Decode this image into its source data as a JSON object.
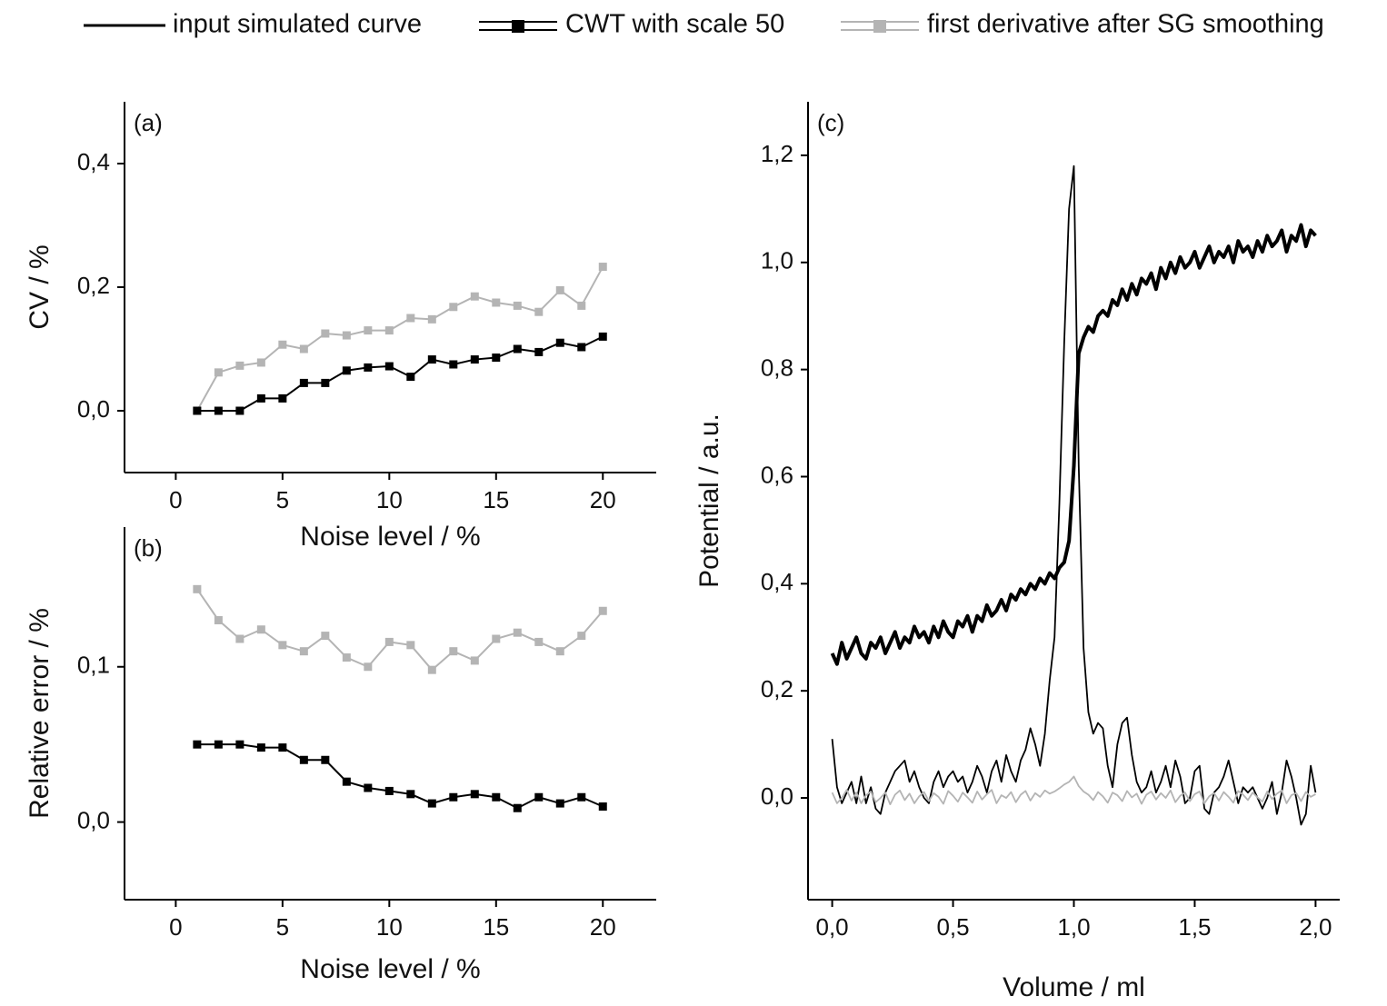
{
  "chart_data": [
    {
      "type": "line",
      "label": "(a)",
      "x_label": "Noise level / %",
      "y_label": "CV / %",
      "x": [
        1,
        2,
        3,
        4,
        5,
        6,
        7,
        8,
        9,
        10,
        11,
        12,
        13,
        14,
        15,
        16,
        17,
        18,
        19,
        20
      ],
      "series": [
        {
          "color": "#b4b4b4",
          "marker": "square",
          "values": [
            0,
            0.062,
            0.073,
            0.078,
            0.107,
            0.1,
            0.125,
            0.122,
            0.13,
            0.13,
            0.15,
            0.148,
            0.168,
            0.185,
            0.175,
            0.17,
            0.16,
            0.195,
            0.17,
            0.233
          ]
        },
        {
          "color": "#000000",
          "marker": "square",
          "values": [
            0,
            0,
            0,
            0.02,
            0.02,
            0.045,
            0.045,
            0.065,
            0.07,
            0.072,
            0.055,
            0.083,
            0.075,
            0.083,
            0.086,
            0.1,
            0.095,
            0.11,
            0.103,
            0.12
          ]
        }
      ],
      "xlim": [
        -2.4,
        22.5
      ],
      "xticks": [
        0,
        5,
        10,
        15,
        20
      ],
      "ylim": [
        -0.1,
        0.5
      ],
      "yticks": [
        {
          "value": 0,
          "label": "0,0"
        },
        {
          "value": 0.2,
          "label": "0,2"
        },
        {
          "value": 0.4,
          "label": "0,4"
        }
      ]
    },
    {
      "type": "line",
      "label": "(b)",
      "x_label": "Noise level / %",
      "y_label": "Relative error / %",
      "x": [
        1,
        2,
        3,
        4,
        5,
        6,
        7,
        8,
        9,
        10,
        11,
        12,
        13,
        14,
        15,
        16,
        17,
        18,
        19,
        20
      ],
      "series": [
        {
          "color": "#b4b4b4",
          "marker": "square",
          "values": [
            0.15,
            0.13,
            0.118,
            0.124,
            0.114,
            0.11,
            0.12,
            0.106,
            0.1,
            0.116,
            0.114,
            0.098,
            0.11,
            0.104,
            0.118,
            0.122,
            0.116,
            0.11,
            0.12,
            0.136
          ]
        },
        {
          "color": "#000000",
          "marker": "square",
          "values": [
            0.05,
            0.05,
            0.05,
            0.048,
            0.048,
            0.04,
            0.04,
            0.026,
            0.022,
            0.02,
            0.018,
            0.012,
            0.016,
            0.018,
            0.016,
            0.009,
            0.016,
            0.012,
            0.016,
            0.01
          ]
        }
      ],
      "xlim": [
        -2.4,
        22.5
      ],
      "xticks": [
        0,
        5,
        10,
        15,
        20
      ],
      "ylim": [
        -0.05,
        0.19
      ],
      "yticks": [
        {
          "value": 0,
          "label": "0,0"
        },
        {
          "value": 0.1,
          "label": "0,1"
        }
      ]
    },
    {
      "type": "line",
      "label": "(c)",
      "x_label": "Volume / ml",
      "y_label": "Potential / a.u.",
      "x": [
        0,
        0.02,
        0.04,
        0.06,
        0.08,
        0.1,
        0.12,
        0.14,
        0.16,
        0.18,
        0.2,
        0.22,
        0.24,
        0.26,
        0.28,
        0.3,
        0.32,
        0.34,
        0.36,
        0.38,
        0.4,
        0.42,
        0.44,
        0.46,
        0.48,
        0.5,
        0.52,
        0.54,
        0.56,
        0.58,
        0.6,
        0.62,
        0.64,
        0.66,
        0.68,
        0.7,
        0.72,
        0.74,
        0.76,
        0.78,
        0.8,
        0.82,
        0.84,
        0.86,
        0.88,
        0.9,
        0.92,
        0.94,
        0.96,
        0.98,
        1,
        1.02,
        1.04,
        1.06,
        1.08,
        1.1,
        1.12,
        1.14,
        1.16,
        1.18,
        1.2,
        1.22,
        1.24,
        1.26,
        1.28,
        1.3,
        1.32,
        1.34,
        1.36,
        1.38,
        1.4,
        1.42,
        1.44,
        1.46,
        1.48,
        1.5,
        1.52,
        1.54,
        1.56,
        1.58,
        1.6,
        1.62,
        1.64,
        1.66,
        1.68,
        1.7,
        1.72,
        1.74,
        1.76,
        1.78,
        1.8,
        1.82,
        1.84,
        1.86,
        1.88,
        1.9,
        1.92,
        1.94,
        1.96,
        1.98,
        2
      ],
      "series": [
        {
          "name": "input simulated curve",
          "color": "#000000",
          "values": [
            0.27,
            0.25,
            0.29,
            0.26,
            0.28,
            0.3,
            0.27,
            0.26,
            0.29,
            0.28,
            0.3,
            0.27,
            0.29,
            0.31,
            0.28,
            0.3,
            0.29,
            0.32,
            0.3,
            0.31,
            0.29,
            0.32,
            0.3,
            0.33,
            0.31,
            0.3,
            0.33,
            0.32,
            0.34,
            0.31,
            0.34,
            0.33,
            0.36,
            0.34,
            0.35,
            0.37,
            0.35,
            0.38,
            0.37,
            0.39,
            0.38,
            0.4,
            0.39,
            0.41,
            0.4,
            0.42,
            0.41,
            0.43,
            0.44,
            0.48,
            0.62,
            0.83,
            0.86,
            0.88,
            0.87,
            0.9,
            0.91,
            0.9,
            0.93,
            0.92,
            0.95,
            0.93,
            0.96,
            0.94,
            0.97,
            0.96,
            0.98,
            0.95,
            0.99,
            0.97,
            1.0,
            0.98,
            1.01,
            0.99,
            1.0,
            1.02,
            0.99,
            1.01,
            1.03,
            1.0,
            1.02,
            1.01,
            1.03,
            1.0,
            1.04,
            1.02,
            1.03,
            1.01,
            1.04,
            1.02,
            1.05,
            1.03,
            1.04,
            1.06,
            1.02,
            1.05,
            1.04,
            1.07,
            1.03,
            1.06,
            1.05
          ]
        },
        {
          "name": "CWT with scale 50",
          "color": "#000000",
          "values": [
            0.11,
            0.02,
            -0.01,
            0.01,
            0.03,
            -0.01,
            0.04,
            -0.01,
            0.02,
            -0.02,
            -0.03,
            0.01,
            0.03,
            0.05,
            0.06,
            0.07,
            0.03,
            0.05,
            0.02,
            0.0,
            -0.01,
            0.03,
            0.05,
            0.02,
            0.04,
            0.05,
            0.03,
            0.04,
            0.01,
            0.03,
            0.06,
            0.04,
            0.01,
            0.05,
            0.07,
            0.03,
            0.08,
            0.05,
            0.03,
            0.07,
            0.09,
            0.13,
            0.1,
            0.06,
            0.12,
            0.22,
            0.3,
            0.55,
            0.85,
            1.1,
            1.18,
            0.62,
            0.28,
            0.16,
            0.12,
            0.14,
            0.13,
            0.06,
            0.02,
            0.1,
            0.14,
            0.15,
            0.08,
            0.03,
            0.01,
            0.02,
            0.05,
            0.01,
            0.03,
            0.06,
            0.02,
            0.07,
            0.04,
            -0.01,
            0.0,
            0.05,
            0.06,
            -0.02,
            -0.03,
            0.01,
            0.02,
            0.04,
            0.07,
            0.03,
            -0.01,
            0.02,
            0.01,
            0.02,
            0.0,
            -0.02,
            0.0,
            0.03,
            -0.03,
            0.01,
            0.07,
            0.04,
            0.0,
            -0.05,
            -0.03,
            0.06,
            0.01
          ]
        },
        {
          "name": "first derivative after SG smoothing",
          "color": "#b4b4b4",
          "values": [
            0.01,
            -0.01,
            0.0,
            0.015,
            -0.005,
            0.01,
            -0.01,
            0.005,
            0.012,
            -0.008,
            0.0,
            0.01,
            -0.012,
            0.006,
            0.014,
            -0.004,
            0.008,
            -0.01,
            0.003,
            0.011,
            -0.006,
            0.009,
            0.002,
            -0.011,
            0.013,
            0.004,
            -0.007,
            0.01,
            0.001,
            -0.009,
            0.012,
            -0.003,
            0.007,
            0.015,
            -0.01,
            0.005,
            0.0,
            0.011,
            -0.008,
            0.006,
            0.013,
            -0.005,
            0.009,
            0.002,
            0.014,
            0.008,
            0.012,
            0.018,
            0.025,
            0.03,
            0.04,
            0.022,
            0.012,
            0.006,
            -0.004,
            0.011,
            0.003,
            -0.009,
            0.01,
            0.005,
            -0.006,
            0.013,
            0.001,
            0.008,
            -0.011,
            0.006,
            0.012,
            -0.003,
            0.009,
            0.0,
            0.014,
            -0.008,
            0.004,
            0.01,
            -0.006,
            0.007,
            0.012,
            -0.01,
            0.003,
            0.009,
            -0.005,
            0.011,
            0.002,
            -0.009,
            0.013,
            0.006,
            -0.004,
            0.01,
            0.001,
            -0.007,
            0.012,
            -0.002,
            0.008,
            0.014,
            -0.01,
            0.005,
            0.009,
            -0.006,
            0.011,
            0.002,
            0.007
          ]
        }
      ],
      "xlim": [
        -0.1,
        2.1
      ],
      "xticks": [
        {
          "value": 0,
          "label": "0,0"
        },
        {
          "value": 0.5,
          "label": "0,5"
        },
        {
          "value": 1,
          "label": "1,0"
        },
        {
          "value": 1.5,
          "label": "1,5"
        },
        {
          "value": 2,
          "label": "2,0"
        }
      ],
      "ylim": [
        -0.19,
        1.3
      ],
      "yticks": [
        {
          "value": 0,
          "label": "0,0"
        },
        {
          "value": 0.2,
          "label": "0,2"
        },
        {
          "value": 0.4,
          "label": "0,4"
        },
        {
          "value": 0.6,
          "label": "0,6"
        },
        {
          "value": 0.8,
          "label": "0,8"
        },
        {
          "value": 1,
          "label": "1,0"
        },
        {
          "value": 1.2,
          "label": "1,2"
        }
      ]
    }
  ]
}
